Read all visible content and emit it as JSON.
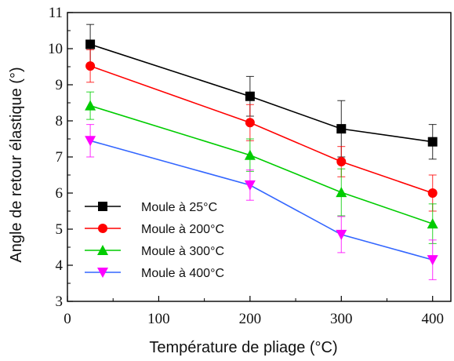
{
  "chart_data": {
    "type": "line",
    "title": "",
    "xlabel": "Température de pliage (°C)",
    "ylabel": "Angle de retour élastique (°)",
    "xlim": [
      0,
      420
    ],
    "ylim": [
      3,
      11
    ],
    "xticks": [
      0,
      100,
      200,
      300,
      400
    ],
    "yticks": [
      3,
      4,
      5,
      6,
      7,
      8,
      9,
      10,
      11
    ],
    "grid": false,
    "legend_position": "bottom-left",
    "x": [
      25,
      200,
      300,
      400
    ],
    "series": [
      {
        "name": "Moule à 25°C",
        "color": "#000000",
        "marker": "square",
        "values": [
          10.12,
          8.68,
          7.78,
          7.42
        ],
        "errors": [
          0.55,
          0.55,
          0.78,
          0.48
        ]
      },
      {
        "name": "Moule à 200°C",
        "color": "#ff0000",
        "marker": "circle",
        "values": [
          9.52,
          7.95,
          6.87,
          6.0
        ],
        "errors": [
          0.45,
          0.5,
          0.42,
          0.5
        ]
      },
      {
        "name": "Moule à 300°C",
        "color": "#00cc00",
        "marker": "triangle-up",
        "values": [
          8.42,
          7.05,
          6.02,
          5.15
        ],
        "errors": [
          0.38,
          0.45,
          0.65,
          0.55
        ]
      },
      {
        "name": "Moule à 400°C",
        "color": "#3366ff",
        "marker": "triangle-down",
        "values": [
          7.45,
          6.22,
          4.85,
          4.15
        ],
        "errors": [
          0.45,
          0.42,
          0.5,
          0.55
        ],
        "marker_color": "#ff00ff"
      }
    ]
  }
}
